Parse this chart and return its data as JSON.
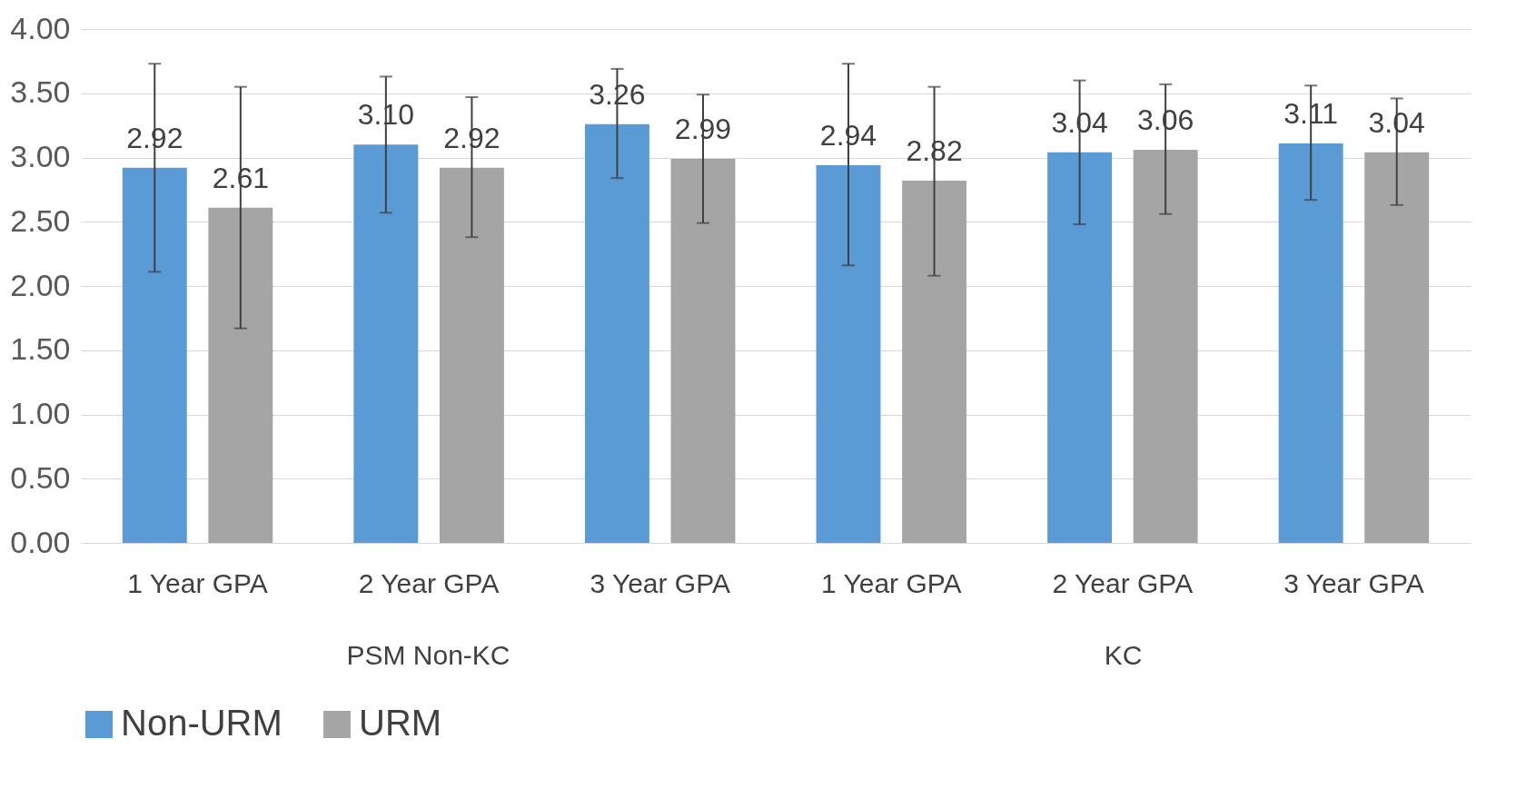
{
  "chart_data": {
    "type": "bar",
    "categories": [
      "1 Year GPA",
      "2 Year GPA",
      "3 Year GPA",
      "1 Year GPA",
      "2 Year GPA",
      "3 Year GPA"
    ],
    "series": [
      {
        "name": "Non-URM",
        "color": "#5b9bd5",
        "values": [
          2.92,
          3.1,
          3.26,
          2.94,
          3.04,
          3.11
        ],
        "value_labels": [
          "2.92",
          "3.10",
          "3.26",
          "2.94",
          "3.04",
          "3.11"
        ],
        "errors": [
          [
            2.11,
            3.73
          ],
          [
            2.57,
            3.63
          ],
          [
            2.84,
            3.69
          ],
          [
            2.16,
            3.73
          ],
          [
            2.48,
            3.6
          ],
          [
            2.67,
            3.56
          ]
        ]
      },
      {
        "name": "URM",
        "color": "#a5a5a5",
        "values": [
          2.61,
          2.92,
          2.99,
          2.82,
          3.06,
          3.04
        ],
        "value_labels": [
          "2.61",
          "2.92",
          "2.99",
          "2.82",
          "3.06",
          "3.04"
        ],
        "errors": [
          [
            1.67,
            3.55
          ],
          [
            2.38,
            3.47
          ],
          [
            2.49,
            3.49
          ],
          [
            2.08,
            3.55
          ],
          [
            2.56,
            3.57
          ],
          [
            2.63,
            3.46
          ]
        ]
      }
    ],
    "annotations": [
      "PSM Non-KC",
      "KC"
    ],
    "ylim": [
      0,
      4
    ],
    "yticks": [
      {
        "value": 0,
        "label": "0.00"
      },
      {
        "value": 0.5,
        "label": "0.50"
      },
      {
        "value": 1,
        "label": "1.00"
      },
      {
        "value": 1.5,
        "label": "1.50"
      },
      {
        "value": 2,
        "label": "2.00"
      },
      {
        "value": 2.5,
        "label": "2.50"
      },
      {
        "value": 3,
        "label": "3.00"
      },
      {
        "value": 3.5,
        "label": "3.50"
      },
      {
        "value": 4,
        "label": "4.00"
      }
    ],
    "grid": "y",
    "legend": "bottom"
  }
}
